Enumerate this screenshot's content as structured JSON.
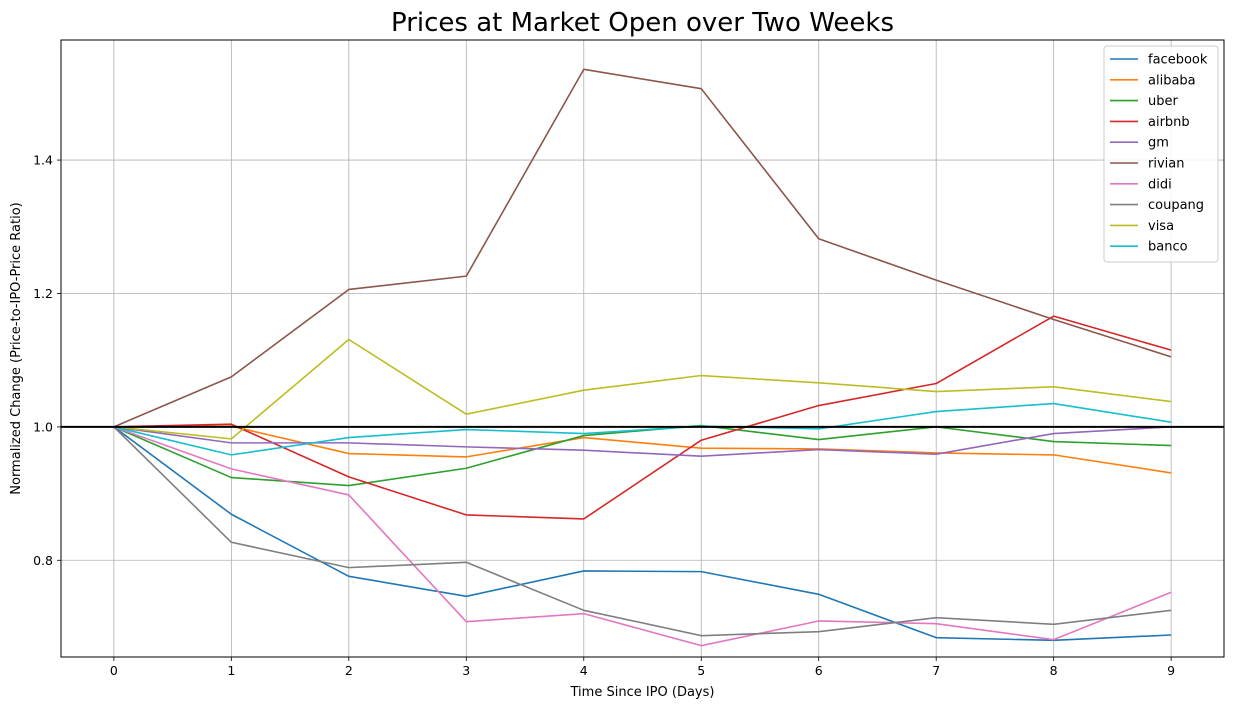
{
  "chart_data": {
    "type": "line",
    "title": "Prices at Market Open over Two Weeks",
    "xlabel": "Time Since IPO (Days)",
    "ylabel": "Normalized Change (Price-to-IPO-Price Ratio)",
    "x": [
      0,
      1,
      2,
      3,
      4,
      5,
      6,
      7,
      8,
      9
    ],
    "xticks": [
      "0",
      "1",
      "2",
      "3",
      "4",
      "5",
      "6",
      "7",
      "8",
      "9"
    ],
    "xlim": [
      -0.45,
      9.45
    ],
    "ylim": [
      0.655,
      1.58
    ],
    "yticks": [
      0.8,
      1.0,
      1.2,
      1.4
    ],
    "ytick_labels": [
      "0.8",
      "1.0",
      "1.2",
      "1.4"
    ],
    "grid": true,
    "legend_position": "top-right",
    "reference_line": {
      "y": 1.0,
      "color": "#000000"
    },
    "series": [
      {
        "name": "facebook",
        "color": "#1f77b4",
        "values": [
          1.0,
          0.869,
          0.776,
          0.746,
          0.784,
          0.783,
          0.749,
          0.684,
          0.68,
          0.688
        ]
      },
      {
        "name": "alibaba",
        "color": "#ff7f0e",
        "values": [
          1.0,
          1.001,
          0.96,
          0.955,
          0.984,
          0.968,
          0.967,
          0.961,
          0.958,
          0.931
        ]
      },
      {
        "name": "uber",
        "color": "#2ca02c",
        "values": [
          1.0,
          0.924,
          0.912,
          0.938,
          0.987,
          1.002,
          0.981,
          1.0,
          0.978,
          0.972
        ]
      },
      {
        "name": "airbnb",
        "color": "#d62728",
        "values": [
          1.0,
          1.004,
          0.925,
          0.868,
          0.862,
          0.98,
          1.032,
          1.065,
          1.166,
          1.115
        ]
      },
      {
        "name": "gm",
        "color": "#9467bd",
        "values": [
          1.0,
          0.976,
          0.976,
          0.97,
          0.965,
          0.956,
          0.966,
          0.959,
          0.99,
          1.0
        ]
      },
      {
        "name": "rivian",
        "color": "#8c564b",
        "values": [
          1.0,
          1.075,
          1.206,
          1.226,
          1.536,
          1.507,
          1.282,
          1.22,
          1.161,
          1.105
        ]
      },
      {
        "name": "didi",
        "color": "#e377c2",
        "values": [
          1.0,
          0.937,
          0.898,
          0.708,
          0.72,
          0.672,
          0.709,
          0.705,
          0.681,
          0.752
        ]
      },
      {
        "name": "coupang",
        "color": "#7f7f7f",
        "values": [
          1.0,
          0.827,
          0.789,
          0.797,
          0.725,
          0.687,
          0.693,
          0.714,
          0.704,
          0.725
        ]
      },
      {
        "name": "visa",
        "color": "#bcbd22",
        "values": [
          1.0,
          0.982,
          1.131,
          1.019,
          1.055,
          1.077,
          1.066,
          1.053,
          1.06,
          1.038
        ]
      },
      {
        "name": "banco",
        "color": "#17becf",
        "values": [
          1.0,
          0.958,
          0.984,
          0.996,
          0.99,
          1.001,
          0.997,
          1.023,
          1.035,
          1.007
        ]
      }
    ]
  }
}
